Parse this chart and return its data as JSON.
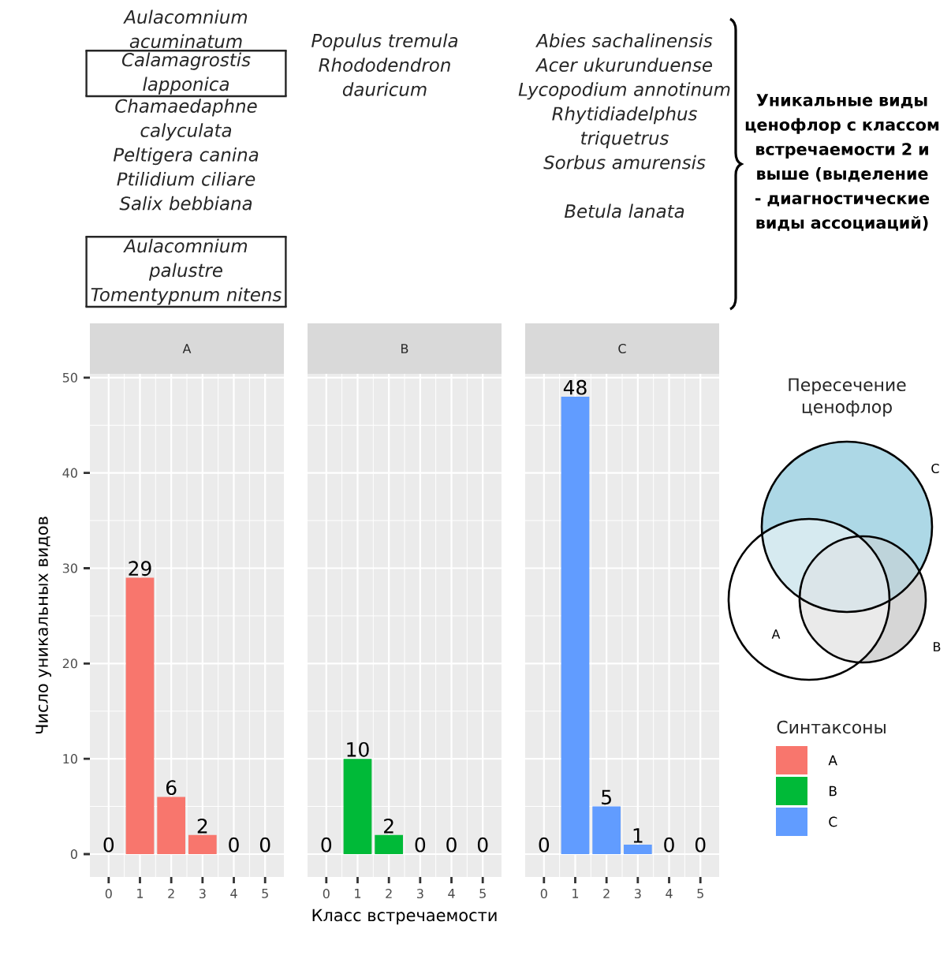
{
  "chart_data": [
    {
      "type": "bar",
      "title": "A",
      "x": [
        0,
        1,
        2,
        3,
        4,
        5
      ],
      "xlim": [
        -0.6,
        5.6
      ],
      "ylim": [
        -2.4,
        50.4
      ],
      "xticks": [
        0,
        1,
        2,
        3,
        4,
        5
      ],
      "yticks": [
        0,
        10,
        20,
        30,
        40,
        50
      ],
      "ylabel": "Число уникальных видов",
      "grid": true,
      "series": [
        {
          "name": "A",
          "color": "#f8766d",
          "values": [
            0,
            29,
            6,
            2,
            0,
            0
          ],
          "value_labels": [
            "0",
            "29",
            "6",
            "2",
            "0",
            "0"
          ]
        }
      ],
      "annotations": [
        "Aulacomnium acuminatum",
        "Calamagrostis lapponica",
        "Chamaedaphne calyculata",
        "Peltigera canina",
        "Ptilidium ciliare",
        "Salix bebbiana",
        "Aulacomnium palustre",
        "Tomentypnum nitens"
      ]
    },
    {
      "type": "bar",
      "title": "B",
      "x": [
        0,
        1,
        2,
        3,
        4,
        5
      ],
      "xlim": [
        -0.6,
        5.6
      ],
      "ylim": [
        -2.4,
        50.4
      ],
      "xticks": [
        0,
        1,
        2,
        3,
        4,
        5
      ],
      "yticks": [
        0,
        10,
        20,
        30,
        40,
        50
      ],
      "xlabel": "Класс встречаемости",
      "tick_labels": "x",
      "grid": true,
      "series": [
        {
          "name": "B",
          "color": "#00ba38",
          "values": [
            0,
            10,
            2,
            0,
            0,
            0
          ],
          "value_labels": [
            "0",
            "10",
            "2",
            "0",
            "0",
            "0"
          ]
        }
      ],
      "annotations": [
        "Populus tremula",
        "Rhododendron dauricum"
      ]
    },
    {
      "type": "bar",
      "title": "C",
      "x": [
        0,
        1,
        2,
        3,
        4,
        5
      ],
      "xlim": [
        -0.6,
        5.6
      ],
      "ylim": [
        -2.4,
        50.4
      ],
      "xticks": [
        0,
        1,
        2,
        3,
        4,
        5
      ],
      "yticks": [
        0,
        10,
        20,
        30,
        40,
        50
      ],
      "tick_labels": "x",
      "grid": true,
      "legend": "right",
      "legend_title": "Синтаксоны",
      "series": [
        {
          "name": "C",
          "color": "#619cff",
          "values": [
            0,
            48,
            5,
            1,
            0,
            0
          ],
          "value_labels": [
            "0",
            "48",
            "5",
            "1",
            "0",
            "0"
          ]
        }
      ],
      "annotations": [
        "Abies sachalinensis",
        "Acer ukurunduense",
        "Lycopodium annotinum",
        "Rhytidiadelphus triquetrus",
        "Sorbus amurensis",
        "Betula lanata"
      ]
    },
    {
      "type": "other",
      "title": "Уникальные виды ценофлор с классом встречаемости 2 и выше (выделение - диагностические виды ассоциаций)"
    },
    {
      "type": "other",
      "title": "Пересечение ценофлор",
      "annotations": [
        "A",
        "B",
        "C"
      ]
    }
  ]
}
